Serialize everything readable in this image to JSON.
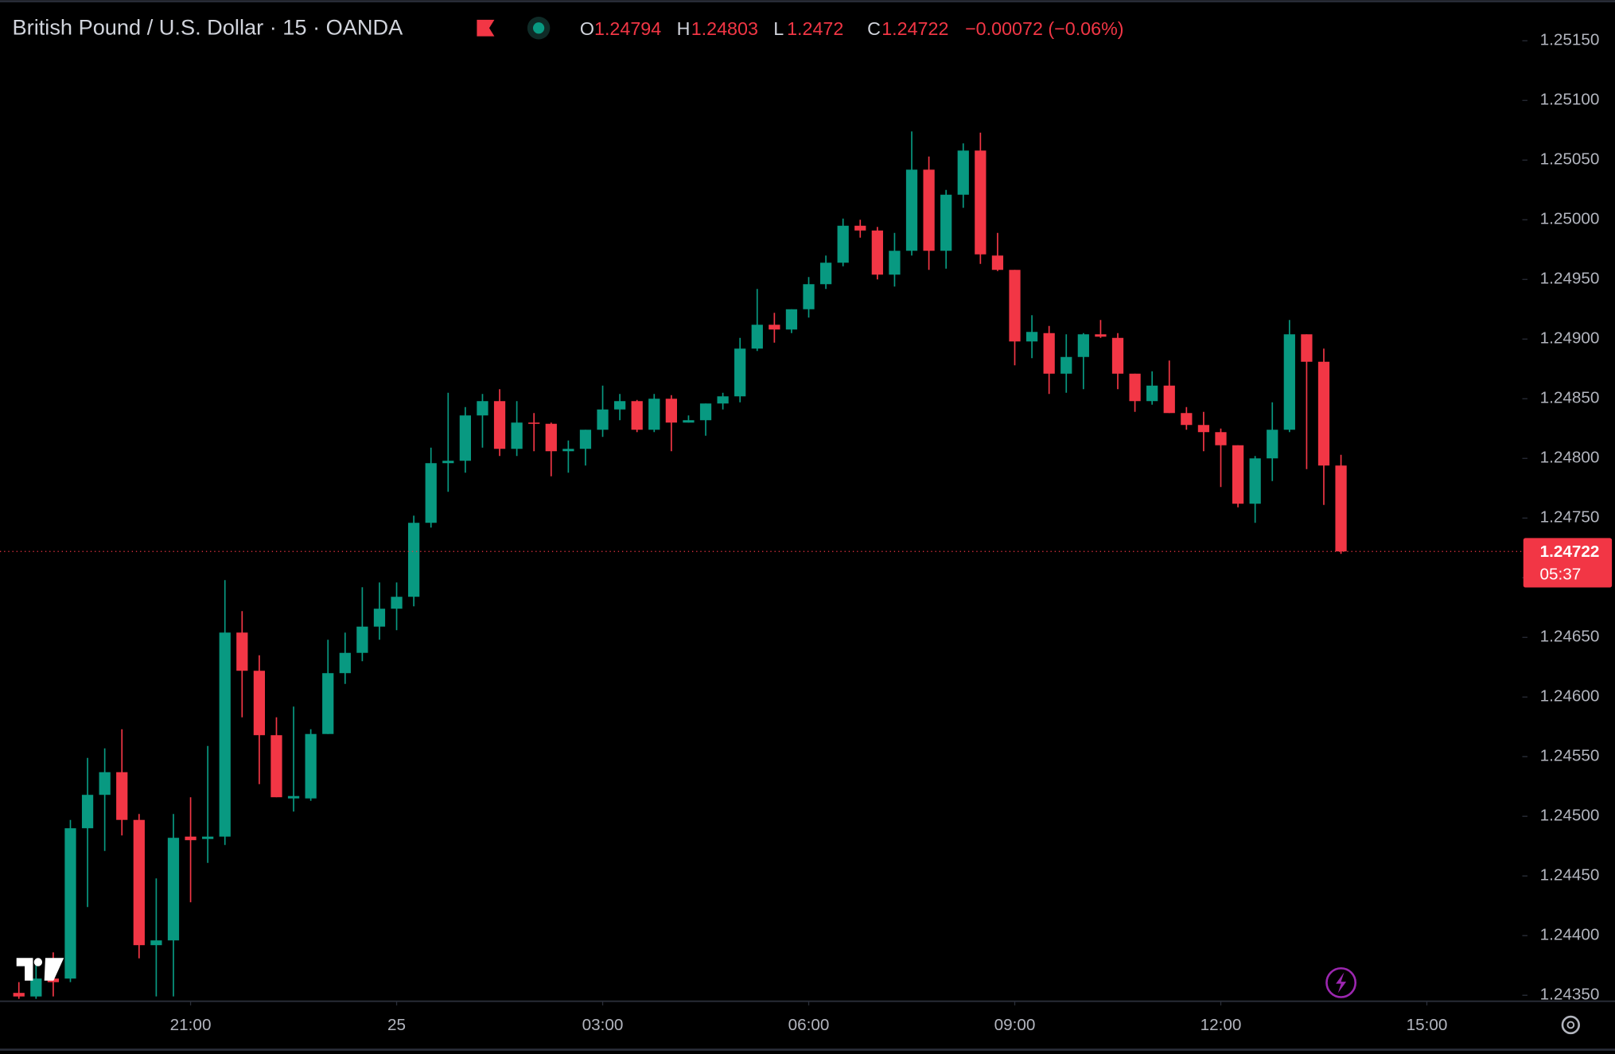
{
  "header": {
    "title": "British Pound / U.S. Dollar · 15 · OANDA",
    "ohlc_letters": [
      "O",
      "H",
      "L",
      "C"
    ],
    "change": "−0.00072 (−0.06%)"
  },
  "chart_data": {
    "type": "candlestick",
    "up_color": "#089981",
    "down_color": "#f23645",
    "open": [
      1.24352,
      1.24349,
      1.24364,
      1.24364,
      1.2449,
      1.24518,
      1.24537,
      1.24497,
      1.24392,
      1.24396,
      1.24483,
      1.24481,
      1.24483,
      1.24654,
      1.24622,
      1.24568,
      1.24515,
      1.24515,
      1.24569,
      1.2462,
      1.24637,
      1.24659,
      1.24674,
      1.24684,
      1.24746,
      1.24796,
      1.24798,
      1.24836,
      1.24848,
      1.24808,
      1.2483,
      1.24829,
      1.24806,
      1.24808,
      1.24824,
      1.24841,
      1.24848,
      1.24824,
      1.2485,
      1.2483,
      1.24832,
      1.24846,
      1.24852,
      1.24892,
      1.24912,
      1.24908,
      1.24925,
      1.24946,
      1.24964,
      1.24995,
      1.24991,
      1.24954,
      1.24974,
      1.25042,
      1.24974,
      1.25021,
      1.25058,
      1.2497,
      1.24958,
      1.24898,
      1.24905,
      1.24871,
      1.24885,
      1.24904,
      1.24901,
      1.24871,
      1.24848,
      1.24861,
      1.24838,
      1.24828,
      1.24822,
      1.24811,
      1.24762,
      1.248,
      1.24824,
      1.24904,
      1.24881,
      1.24794
    ],
    "high": [
      1.24361,
      1.24377,
      1.24386,
      1.24497,
      1.24549,
      1.24557,
      1.24573,
      1.24502,
      1.24448,
      1.24502,
      1.24516,
      1.24559,
      1.24698,
      1.24672,
      1.24635,
      1.24583,
      1.24592,
      1.24573,
      1.24648,
      1.24654,
      1.24692,
      1.24696,
      1.24696,
      1.24752,
      1.24809,
      1.24855,
      1.24843,
      1.24854,
      1.24858,
      1.24848,
      1.24838,
      1.2483,
      1.24815,
      1.24824,
      1.24861,
      1.24854,
      1.24849,
      1.24854,
      1.24853,
      1.24836,
      1.24846,
      1.24855,
      1.24901,
      1.24942,
      1.24922,
      1.24925,
      1.24952,
      1.2497,
      1.25001,
      1.25,
      1.24994,
      1.24989,
      1.25074,
      1.25053,
      1.25025,
      1.25064,
      1.25073,
      1.24989,
      1.24958,
      1.2492,
      1.24911,
      1.24904,
      1.24905,
      1.24916,
      1.24905,
      1.24871,
      1.24873,
      1.24882,
      1.24843,
      1.24839,
      1.24825,
      1.24811,
      1.24802,
      1.24847,
      1.24916,
      1.24904,
      1.24892,
      1.24803
    ],
    "low": [
      1.24347,
      1.24347,
      1.24349,
      1.24361,
      1.24424,
      1.24471,
      1.24484,
      1.24381,
      1.24349,
      1.24349,
      1.24428,
      1.24461,
      1.24476,
      1.24583,
      1.24527,
      1.24516,
      1.24504,
      1.24513,
      1.24569,
      1.24611,
      1.2463,
      1.24648,
      1.24656,
      1.24676,
      1.24742,
      1.24772,
      1.24788,
      1.24809,
      1.24802,
      1.24802,
      1.24806,
      1.24785,
      1.24788,
      1.24794,
      1.24818,
      1.24832,
      1.24822,
      1.24822,
      1.24806,
      1.2483,
      1.24819,
      1.24841,
      1.24847,
      1.2489,
      1.24897,
      1.24905,
      1.24918,
      1.24942,
      1.24961,
      1.24985,
      1.2495,
      1.24944,
      1.2497,
      1.24958,
      1.24959,
      1.2501,
      1.24963,
      1.24957,
      1.24878,
      1.24884,
      1.24854,
      1.24855,
      1.24858,
      1.24901,
      1.24858,
      1.24839,
      1.24845,
      1.24838,
      1.24824,
      1.24806,
      1.24776,
      1.24759,
      1.24746,
      1.24781,
      1.24822,
      1.24791,
      1.24761,
      1.2472
    ],
    "close": [
      1.24349,
      1.24364,
      1.24361,
      1.2449,
      1.24518,
      1.24537,
      1.24497,
      1.24392,
      1.24396,
      1.24482,
      1.2448,
      1.24483,
      1.24654,
      1.24622,
      1.24568,
      1.24516,
      1.24517,
      1.24569,
      1.2462,
      1.24637,
      1.24659,
      1.24674,
      1.24684,
      1.24746,
      1.24796,
      1.24798,
      1.24836,
      1.24848,
      1.24808,
      1.2483,
      1.24829,
      1.24806,
      1.24808,
      1.24824,
      1.24841,
      1.24848,
      1.24824,
      1.2485,
      1.2483,
      1.24832,
      1.24846,
      1.24852,
      1.24892,
      1.24912,
      1.24908,
      1.24925,
      1.24946,
      1.24964,
      1.24995,
      1.24991,
      1.24954,
      1.24974,
      1.25042,
      1.24974,
      1.25021,
      1.25058,
      1.24971,
      1.24958,
      1.24898,
      1.24906,
      1.24871,
      1.24885,
      1.24904,
      1.24902,
      1.24871,
      1.24848,
      1.24861,
      1.24838,
      1.24828,
      1.24822,
      1.24811,
      1.24762,
      1.248,
      1.24824,
      1.24904,
      1.24881,
      1.24794,
      1.24722
    ],
    "xlim": [
      -1.1,
      87.56
    ],
    "xticks": [
      {
        "value": 10,
        "label": "21:00"
      },
      {
        "value": 22,
        "label": "25"
      },
      {
        "value": 34,
        "label": "03:00"
      },
      {
        "value": 46,
        "label": "06:00"
      },
      {
        "value": 58,
        "label": "09:00"
      },
      {
        "value": 70,
        "label": "12:00"
      },
      {
        "value": 82,
        "label": "15:00"
      }
    ],
    "ylim": [
      1.24345,
      1.25184
    ],
    "yticks": [
      {
        "value": 1.2435,
        "label": "1.24350"
      },
      {
        "value": 1.244,
        "label": "1.24400"
      },
      {
        "value": 1.2445,
        "label": "1.24450"
      },
      {
        "value": 1.245,
        "label": "1.24500"
      },
      {
        "value": 1.2455,
        "label": "1.24550"
      },
      {
        "value": 1.246,
        "label": "1.24600"
      },
      {
        "value": 1.2465,
        "label": "1.24650"
      },
      {
        "value": 1.247,
        "label": "1.24700"
      },
      {
        "value": 1.2475,
        "label": "1.24750"
      },
      {
        "value": 1.248,
        "label": "1.24800"
      },
      {
        "value": 1.2485,
        "label": "1.24850"
      },
      {
        "value": 1.249,
        "label": "1.24900"
      },
      {
        "value": 1.2495,
        "label": "1.24950"
      },
      {
        "value": 1.25,
        "label": "1.25000"
      },
      {
        "value": 1.2505,
        "label": "1.25050"
      },
      {
        "value": 1.251,
        "label": "1.25100"
      },
      {
        "value": 1.2515,
        "label": "1.25150"
      }
    ],
    "grid": false,
    "countdown": "05:37"
  }
}
